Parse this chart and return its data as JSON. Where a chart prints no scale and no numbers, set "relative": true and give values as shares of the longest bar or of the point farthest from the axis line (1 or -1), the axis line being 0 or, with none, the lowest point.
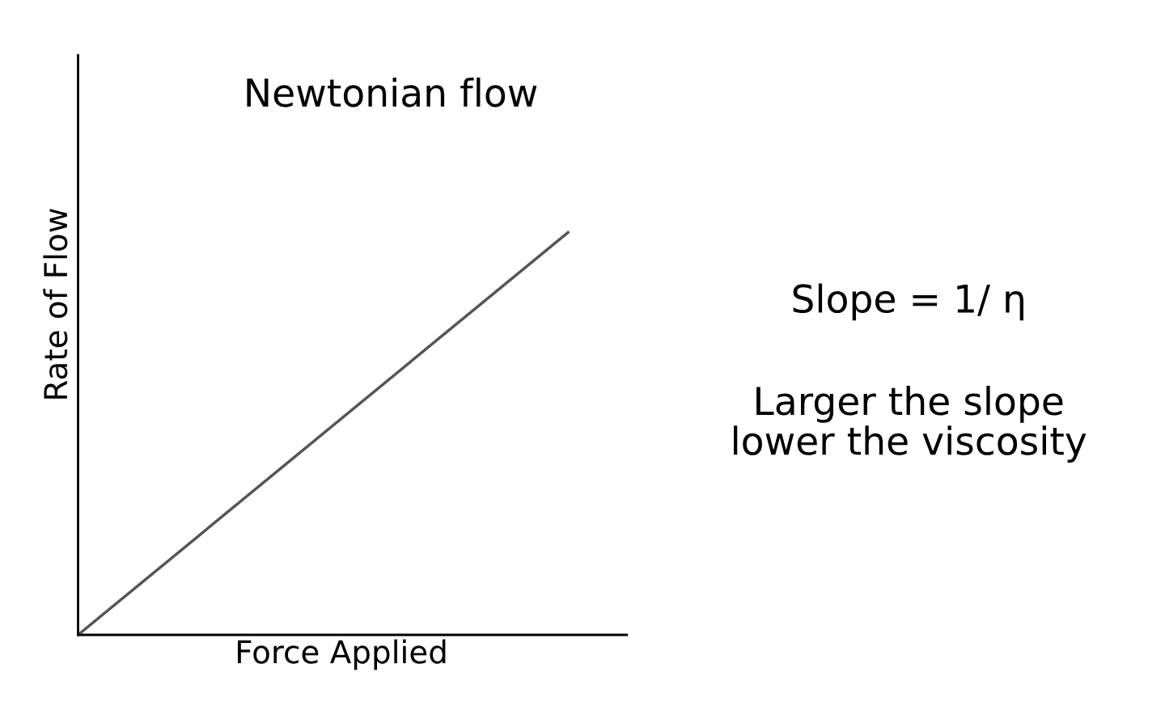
{
  "chart_data": {
    "type": "line",
    "title": "Newtonian flow",
    "xlabel": "Force Applied",
    "ylabel": "Rate of Flow",
    "categories": [
      null,
      null
    ],
    "relative": true,
    "series": [
      {
        "color": "#555555",
        "values": [
          0,
          1
        ]
      }
    ],
    "annotations": [
      "Slope = 1/ η",
      "Larger the slope\nlower the viscosity"
    ],
    "legend": false,
    "marker": "none",
    "line_style": "solid"
  }
}
